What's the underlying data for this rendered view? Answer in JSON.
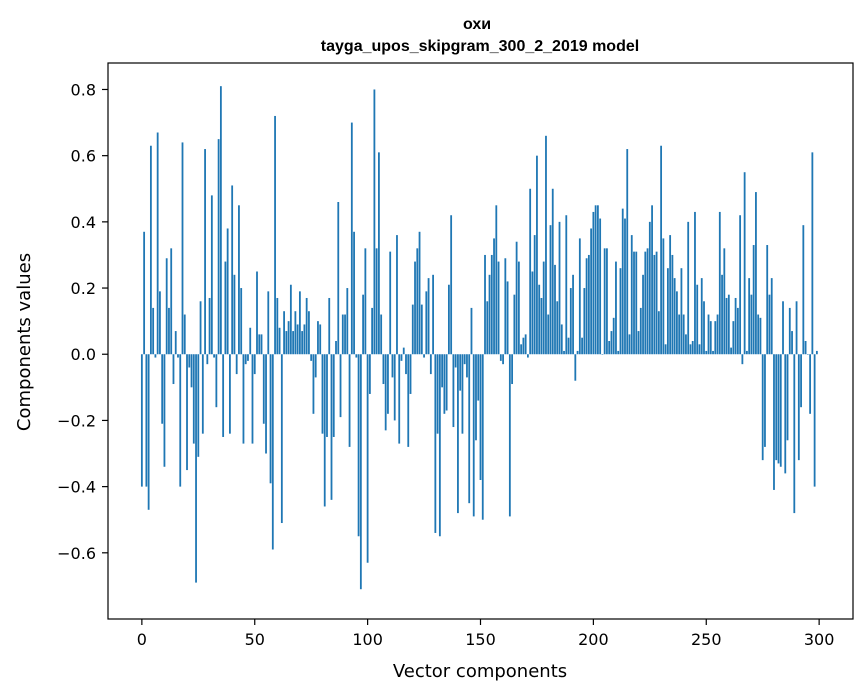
{
  "chart_data": {
    "type": "bar",
    "title_line1": "охи",
    "title_line2": "tayga_upos_skipgram_300_2_2019 model",
    "xlabel": "Vector components",
    "ylabel": "Components values",
    "xlim": [
      -15,
      315
    ],
    "ylim": [
      -0.8,
      0.88
    ],
    "xticks": [
      0,
      50,
      100,
      150,
      200,
      250,
      300
    ],
    "yticks": [
      -0.6,
      -0.4,
      -0.2,
      0.0,
      0.2,
      0.4,
      0.6,
      0.8
    ],
    "ytick_labels": [
      "−0.6",
      "−0.4",
      "−0.2",
      "0.0",
      "0.2",
      "0.4",
      "0.6",
      "0.8"
    ],
    "bar_color": "#1f77b4",
    "grid": false,
    "legend": "none",
    "x": [
      0,
      1,
      2,
      3,
      4,
      5,
      6,
      7,
      8,
      9,
      10,
      11,
      12,
      13,
      14,
      15,
      16,
      17,
      18,
      19,
      20,
      21,
      22,
      23,
      24,
      25,
      26,
      27,
      28,
      29,
      30,
      31,
      32,
      33,
      34,
      35,
      36,
      37,
      38,
      39,
      40,
      41,
      42,
      43,
      44,
      45,
      46,
      47,
      48,
      49,
      50,
      51,
      52,
      53,
      54,
      55,
      56,
      57,
      58,
      59,
      60,
      61,
      62,
      63,
      64,
      65,
      66,
      67,
      68,
      69,
      70,
      71,
      72,
      73,
      74,
      75,
      76,
      77,
      78,
      79,
      80,
      81,
      82,
      83,
      84,
      85,
      86,
      87,
      88,
      89,
      90,
      91,
      92,
      93,
      94,
      95,
      96,
      97,
      98,
      99,
      100,
      101,
      102,
      103,
      104,
      105,
      106,
      107,
      108,
      109,
      110,
      111,
      112,
      113,
      114,
      115,
      116,
      117,
      118,
      119,
      120,
      121,
      122,
      123,
      124,
      125,
      126,
      127,
      128,
      129,
      130,
      131,
      132,
      133,
      134,
      135,
      136,
      137,
      138,
      139,
      140,
      141,
      142,
      143,
      144,
      145,
      146,
      147,
      148,
      149,
      150,
      151,
      152,
      153,
      154,
      155,
      156,
      157,
      158,
      159,
      160,
      161,
      162,
      163,
      164,
      165,
      166,
      167,
      168,
      169,
      170,
      171,
      172,
      173,
      174,
      175,
      176,
      177,
      178,
      179,
      180,
      181,
      182,
      183,
      184,
      185,
      186,
      187,
      188,
      189,
      190,
      191,
      192,
      193,
      194,
      195,
      196,
      197,
      198,
      199,
      200,
      201,
      202,
      203,
      204,
      205,
      206,
      207,
      208,
      209,
      210,
      211,
      212,
      213,
      214,
      215,
      216,
      217,
      218,
      219,
      220,
      221,
      222,
      223,
      224,
      225,
      226,
      227,
      228,
      229,
      230,
      231,
      232,
      233,
      234,
      235,
      236,
      237,
      238,
      239,
      240,
      241,
      242,
      243,
      244,
      245,
      246,
      247,
      248,
      249,
      250,
      251,
      252,
      253,
      254,
      255,
      256,
      257,
      258,
      259,
      260,
      261,
      262,
      263,
      264,
      265,
      266,
      267,
      268,
      269,
      270,
      271,
      272,
      273,
      274,
      275,
      276,
      277,
      278,
      279,
      280,
      281,
      282,
      283,
      284,
      285,
      286,
      287,
      288,
      289,
      290,
      291,
      292,
      293,
      294,
      295,
      296,
      297,
      298,
      299
    ],
    "values": [
      -0.4,
      0.37,
      -0.4,
      -0.47,
      0.63,
      0.14,
      -0.01,
      0.67,
      0.19,
      -0.21,
      -0.34,
      0.29,
      0.14,
      0.32,
      -0.09,
      0.07,
      -0.01,
      -0.4,
      0.64,
      0.12,
      -0.35,
      -0.04,
      -0.1,
      -0.27,
      -0.69,
      -0.31,
      0.16,
      -0.24,
      0.62,
      -0.03,
      0.17,
      0.48,
      -0.01,
      -0.16,
      0.65,
      0.81,
      -0.25,
      0.28,
      0.38,
      -0.24,
      0.51,
      0.24,
      -0.06,
      0.45,
      0.2,
      -0.27,
      -0.03,
      -0.02,
      0.08,
      -0.27,
      -0.06,
      0.25,
      0.06,
      0.06,
      -0.21,
      -0.3,
      0.19,
      -0.39,
      -0.59,
      0.72,
      0.17,
      0.08,
      -0.51,
      0.13,
      0.07,
      0.1,
      0.21,
      0.07,
      0.13,
      0.09,
      0.19,
      0.07,
      0.09,
      0.17,
      0.13,
      -0.02,
      -0.18,
      -0.07,
      0.1,
      0.09,
      -0.24,
      -0.46,
      -0.25,
      0.17,
      -0.44,
      -0.25,
      0.04,
      0.46,
      -0.19,
      0.12,
      0.12,
      0.2,
      -0.28,
      0.7,
      0.37,
      -0.01,
      -0.55,
      -0.71,
      0.18,
      0.32,
      -0.63,
      -0.12,
      0.14,
      0.8,
      0.32,
      0.61,
      0.12,
      -0.09,
      -0.23,
      -0.18,
      0.31,
      -0.07,
      -0.2,
      0.36,
      -0.27,
      -0.02,
      0.02,
      -0.06,
      -0.28,
      -0.12,
      0.15,
      0.28,
      0.32,
      0.37,
      0.15,
      -0.01,
      0.19,
      0.23,
      -0.06,
      0.24,
      -0.54,
      -0.24,
      -0.55,
      -0.1,
      -0.18,
      -0.17,
      0.21,
      0.42,
      -0.22,
      -0.04,
      -0.48,
      -0.11,
      -0.24,
      -0.03,
      -0.07,
      -0.45,
      0.14,
      -0.49,
      -0.26,
      -0.14,
      -0.38,
      -0.5,
      0.3,
      0.16,
      0.24,
      0.3,
      0.35,
      0.45,
      0.28,
      -0.02,
      -0.03,
      0.29,
      0.22,
      -0.49,
      -0.09,
      0.18,
      0.34,
      0.28,
      0.03,
      0.05,
      0.06,
      -0.01,
      0.5,
      0.25,
      0.36,
      0.6,
      0.21,
      0.17,
      0.28,
      0.66,
      0.12,
      0.39,
      0.5,
      0.27,
      0.16,
      0.4,
      0.09,
      0.01,
      0.42,
      0.05,
      0.2,
      0.24,
      -0.08,
      0.01,
      0.35,
      0.05,
      0.2,
      0.29,
      0.3,
      0.38,
      0.43,
      0.45,
      0.45,
      0.41,
      0.0,
      0.32,
      0.32,
      0.04,
      0.07,
      0.11,
      0.28,
      0.01,
      0.26,
      0.44,
      0.41,
      0.62,
      0.06,
      0.36,
      0.31,
      0.31,
      0.07,
      0.14,
      0.24,
      0.31,
      0.32,
      0.4,
      0.45,
      0.3,
      0.31,
      0.13,
      0.63,
      0.35,
      0.03,
      0.26,
      0.36,
      0.3,
      0.23,
      0.19,
      0.12,
      0.26,
      0.12,
      0.06,
      0.4,
      0.03,
      0.04,
      0.43,
      0.21,
      0.03,
      0.23,
      0.16,
      0.01,
      0.12,
      0.1,
      0.01,
      0.1,
      0.12,
      0.43,
      0.24,
      0.32,
      0.17,
      0.18,
      0.02,
      0.1,
      0.17,
      0.14,
      0.42,
      -0.03,
      0.55,
      0.01,
      0.23,
      0.18,
      0.33,
      0.49,
      0.12,
      0.11,
      -0.32,
      -0.28,
      0.33,
      0.18,
      0.23,
      -0.41,
      -0.32,
      -0.33,
      -0.34,
      0.16,
      -0.36,
      -0.26,
      0.14,
      0.07,
      -0.48,
      0.16,
      -0.32,
      -0.16,
      0.39,
      0.04,
      0.0,
      -0.18,
      0.61,
      -0.4,
      0.01
    ]
  }
}
